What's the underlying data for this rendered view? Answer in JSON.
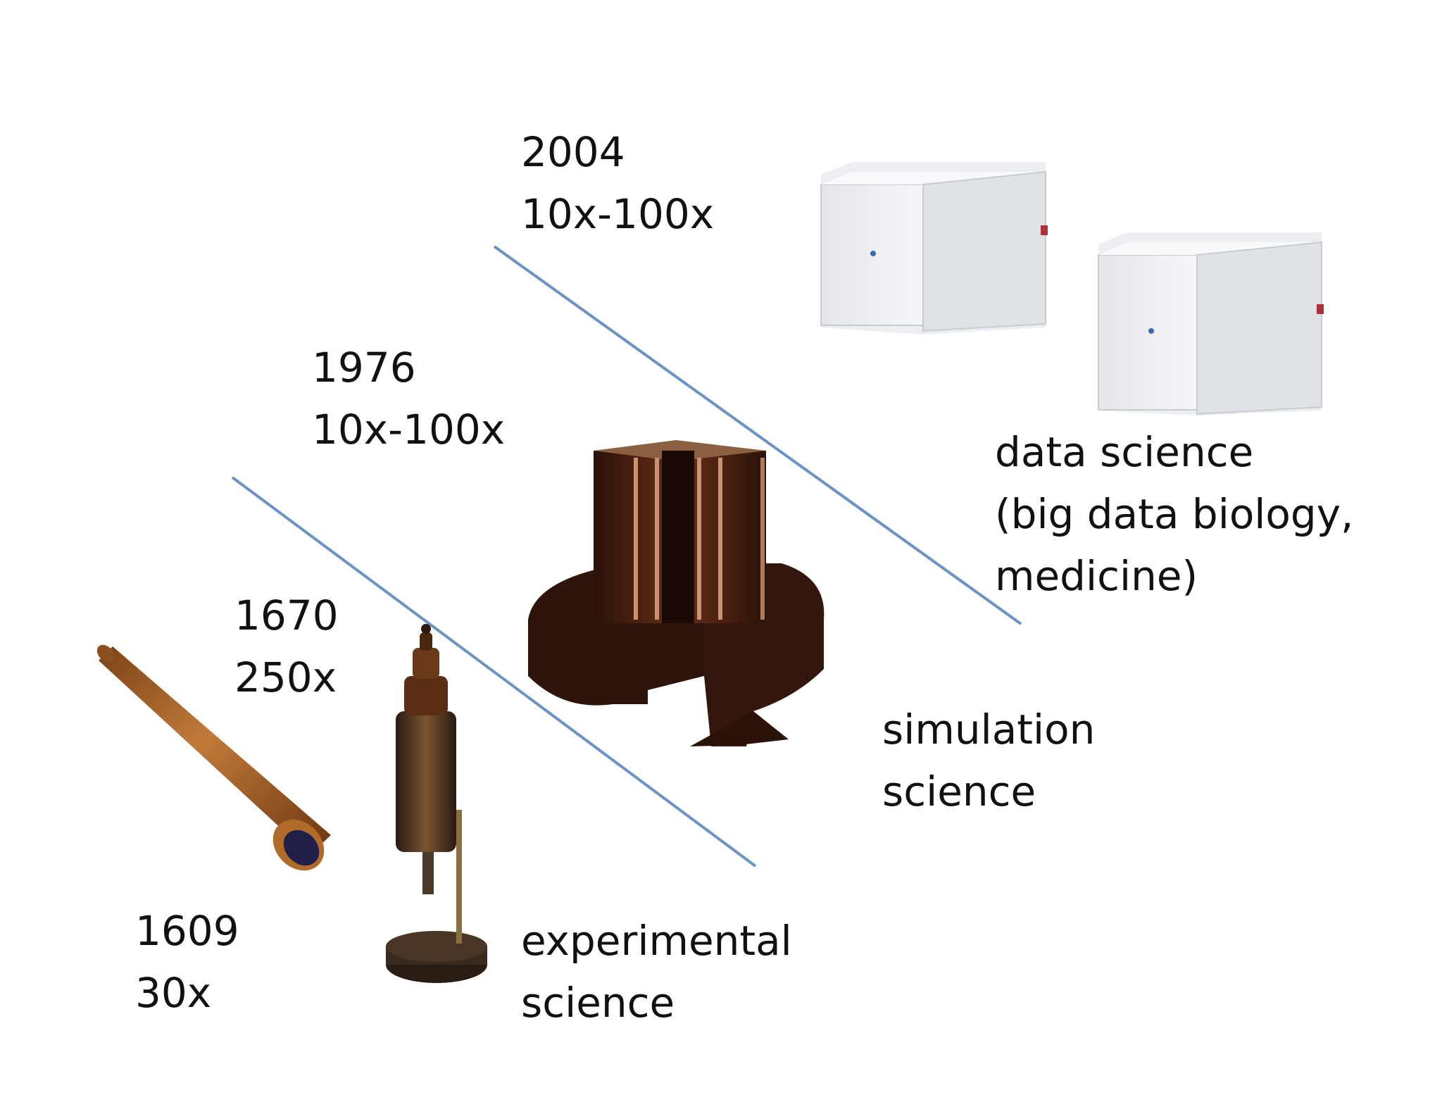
{
  "eras": [
    {
      "year": "1609",
      "factor": "30x",
      "instrument_icon": "telescope-icon"
    },
    {
      "year": "1670",
      "factor": "250x",
      "instrument_icon": "microscope-icon"
    },
    {
      "year": "1976",
      "factor": "10x-100x",
      "instrument_icon": "supercomputer-icon"
    },
    {
      "year": "2004",
      "factor": "10x-100x",
      "instrument_icon": "sequencer-icon"
    }
  ],
  "sciences": {
    "experimental": [
      "experimental",
      "science"
    ],
    "simulation": [
      "simulation",
      "science"
    ],
    "data": [
      "data science",
      "(big data biology,",
      "medicine)"
    ]
  },
  "colors": {
    "divider": "#6b93c4",
    "text": "#111111"
  }
}
